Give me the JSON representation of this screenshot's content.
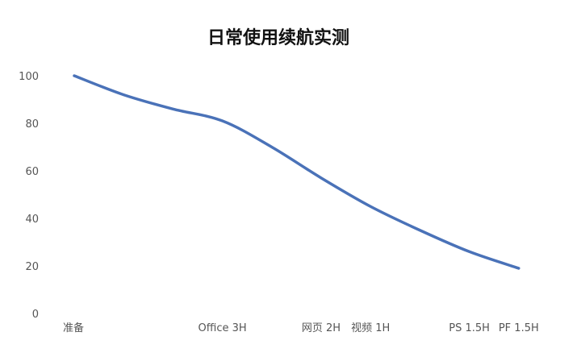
{
  "chart_data": {
    "type": "line",
    "title": "日常使用续航实测",
    "xlabel": "",
    "ylabel": "",
    "categories": [
      "准备",
      "",
      "",
      "Office 3H",
      "",
      "网页 2H",
      "视频 1H",
      "",
      "PS 1.5H",
      "PF 1.5H"
    ],
    "series": [
      {
        "values": [
          100,
          92,
          86,
          81,
          70,
          57,
          45,
          35,
          26,
          19
        ]
      }
    ],
    "ylim": [
      0,
      100
    ],
    "yticks": [
      0,
      20,
      40,
      60,
      80,
      100
    ],
    "grid": false,
    "legend": "none",
    "smooth": true,
    "colors": {
      "line": "#4a72b8"
    }
  }
}
